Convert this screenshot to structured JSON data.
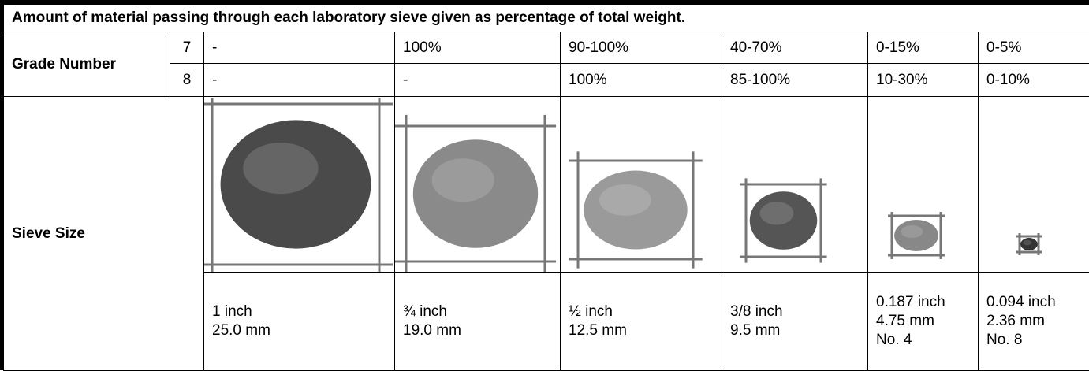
{
  "caption": "Amount of material passing through each laboratory sieve given as percentage of total weight.",
  "grade_label": "Grade Number",
  "grades": [
    {
      "number": "7",
      "values": [
        "-",
        "100%",
        "90-100%",
        "40-70%",
        "0-15%",
        "0-5%"
      ]
    },
    {
      "number": "8",
      "values": [
        "-",
        "-",
        "100%",
        "85-100%",
        "10-30%",
        "0-10%"
      ]
    }
  ],
  "sieve_label": "Sieve Size",
  "sieve_sizes": [
    [
      "1 inch",
      "25.0 mm"
    ],
    [
      "¾ inch",
      "19.0 mm"
    ],
    [
      "½ inch",
      "12.5 mm"
    ],
    [
      "3/8 inch",
      "9.5 mm"
    ],
    [
      "0.187 inch",
      "4.75 mm",
      "No. 4"
    ],
    [
      "0.094 inch",
      "2.36 mm",
      "No. 8"
    ]
  ]
}
